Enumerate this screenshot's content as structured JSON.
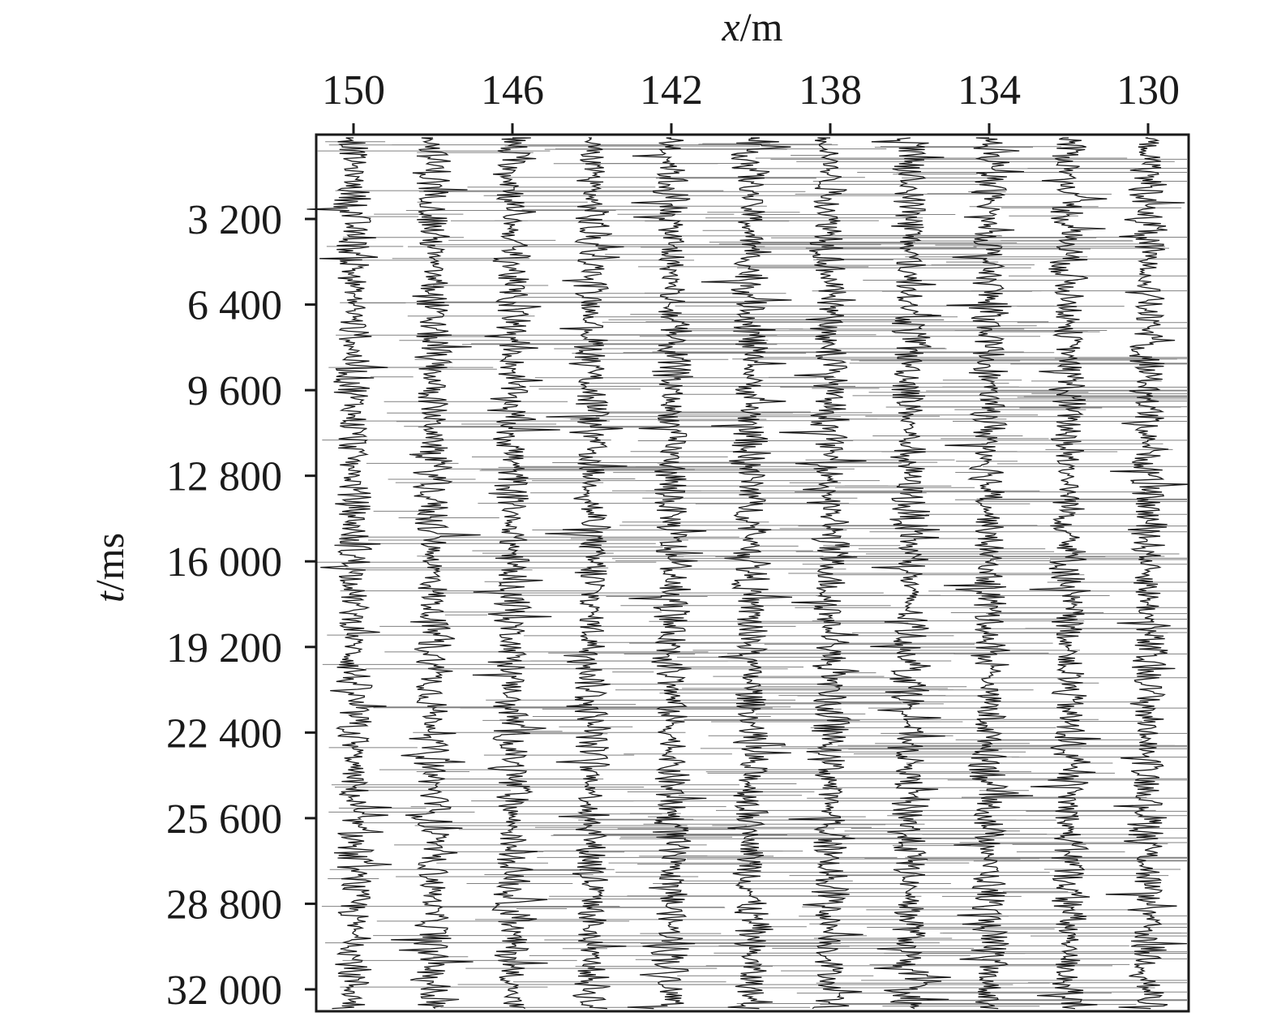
{
  "chart_data": {
    "type": "seismic-wiggle",
    "xlabel": {
      "var": "x",
      "unit": "/m"
    },
    "ylabel": {
      "var": "t",
      "unit": "/ms"
    },
    "x_axis_position": "top",
    "x_reversed": true,
    "xlim": [
      151,
      129
    ],
    "ylim": [
      0,
      32500
    ],
    "x_ticks": [
      {
        "value": 150,
        "label": "150"
      },
      {
        "value": 146,
        "label": "146"
      },
      {
        "value": 142,
        "label": "142"
      },
      {
        "value": 138,
        "label": "138"
      },
      {
        "value": 134,
        "label": "134"
      },
      {
        "value": 130,
        "label": "130"
      }
    ],
    "y_ticks": [
      {
        "value": 3200,
        "label": "3 200"
      },
      {
        "value": 6400,
        "label": "6 400"
      },
      {
        "value": 9600,
        "label": "9 600"
      },
      {
        "value": 12800,
        "label": "12 800"
      },
      {
        "value": 16000,
        "label": "16 000"
      },
      {
        "value": 19200,
        "label": "19 200"
      },
      {
        "value": 22400,
        "label": "22 400"
      },
      {
        "value": 25600,
        "label": "25 600"
      },
      {
        "value": 28800,
        "label": "28 800"
      },
      {
        "value": 32000,
        "label": "32 000"
      }
    ],
    "trace_positions": [
      150,
      148,
      146,
      144,
      142,
      140,
      138,
      136,
      134,
      132,
      130
    ],
    "trace_color": "#1a1a1a",
    "grid": false
  }
}
